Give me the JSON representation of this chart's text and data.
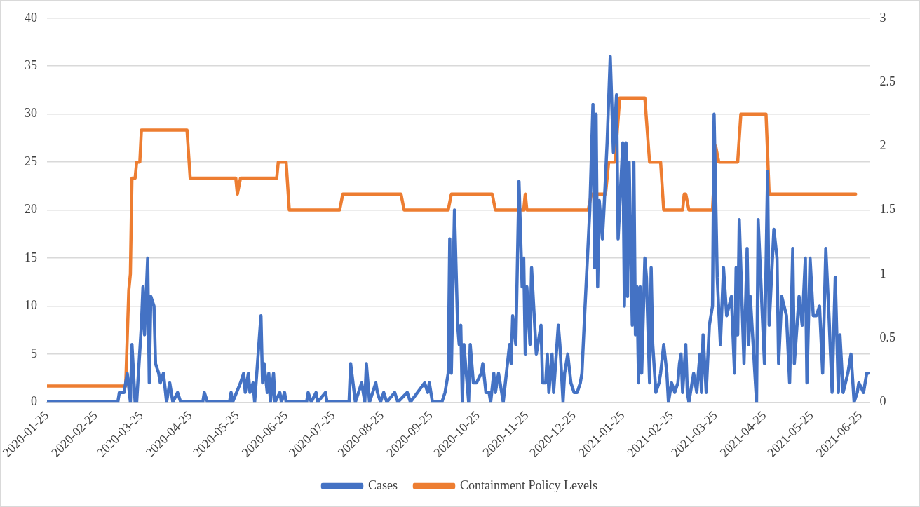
{
  "chart_data": {
    "type": "line",
    "grid": "y",
    "legend": "bottom",
    "marker": "none",
    "line_style": "solid",
    "xlim": [
      "2020-01-25",
      "2021-07-01"
    ],
    "xticks": [
      "2020-01-25",
      "2020-02-25",
      "2020-03-25",
      "2020-04-25",
      "2020-05-25",
      "2020-06-25",
      "2020-07-25",
      "2020-08-25",
      "2020-09-25",
      "2020-10-25",
      "2020-11-25",
      "2020-12-25",
      "2021-01-25",
      "2021-02-25",
      "2021-03-25",
      "2021-04-25",
      "2021-05-25",
      "2021-06-25"
    ],
    "ylim": [
      0,
      40
    ],
    "yticks": [
      0,
      5,
      10,
      15,
      20,
      25,
      30,
      35,
      40
    ],
    "y2lim": [
      0,
      3
    ],
    "y2ticks": [
      0,
      0.5,
      1,
      1.5,
      2,
      2.5,
      3
    ],
    "series": [
      {
        "name": "Cases",
        "color": "#4472c4",
        "axis": "y",
        "x": [
          "2020-01-25",
          "2020-03-10",
          "2020-03-11",
          "2020-03-14",
          "2020-03-16",
          "2020-03-18",
          "2020-03-19",
          "2020-03-21",
          "2020-03-22",
          "2020-03-25",
          "2020-03-26",
          "2020-03-27",
          "2020-03-29",
          "2020-03-30",
          "2020-03-31",
          "2020-04-02",
          "2020-04-03",
          "2020-04-05",
          "2020-04-06",
          "2020-04-08",
          "2020-04-10",
          "2020-04-12",
          "2020-04-14",
          "2020-04-17",
          "2020-04-19",
          "2020-05-03",
          "2020-05-04",
          "2020-05-06",
          "2020-05-20",
          "2020-05-21",
          "2020-05-22",
          "2020-05-27",
          "2020-05-29",
          "2020-05-30",
          "2020-06-01",
          "2020-06-02",
          "2020-06-04",
          "2020-06-05",
          "2020-06-09",
          "2020-06-10",
          "2020-06-11",
          "2020-06-13",
          "2020-06-14",
          "2020-06-15",
          "2020-06-17",
          "2020-06-18",
          "2020-06-21",
          "2020-06-22",
          "2020-06-24",
          "2020-06-25",
          "2020-07-08",
          "2020-07-09",
          "2020-07-11",
          "2020-07-14",
          "2020-07-15",
          "2020-07-20",
          "2020-07-21",
          "2020-08-04",
          "2020-08-05",
          "2020-08-08",
          "2020-08-10",
          "2020-08-12",
          "2020-08-14",
          "2020-08-15",
          "2020-08-17",
          "2020-08-21",
          "2020-08-22",
          "2020-08-24",
          "2020-08-26",
          "2020-08-28",
          "2020-09-02",
          "2020-09-04",
          "2020-09-10",
          "2020-09-12",
          "2020-09-21",
          "2020-09-23",
          "2020-09-24",
          "2020-09-26",
          "2020-10-02",
          "2020-10-04",
          "2020-10-06",
          "2020-10-07",
          "2020-10-08",
          "2020-10-10",
          "2020-10-12",
          "2020-10-13",
          "2020-10-14",
          "2020-10-15",
          "2020-10-16",
          "2020-10-19",
          "2020-10-20",
          "2020-10-22",
          "2020-10-24",
          "2020-10-27",
          "2020-10-28",
          "2020-10-30",
          "2020-11-01",
          "2020-11-02",
          "2020-11-04",
          "2020-11-05",
          "2020-11-07",
          "2020-11-09",
          "2020-11-10",
          "2020-11-12",
          "2020-11-14",
          "2020-11-15",
          "2020-11-16",
          "2020-11-18",
          "2020-11-20",
          "2020-11-22",
          "2020-11-23",
          "2020-11-24",
          "2020-11-25",
          "2020-11-27",
          "2020-11-28",
          "2020-11-30",
          "2020-12-01",
          "2020-12-04",
          "2020-12-05",
          "2020-12-07",
          "2020-12-08",
          "2020-12-09",
          "2020-12-11",
          "2020-12-12",
          "2020-12-15",
          "2020-12-16",
          "2020-12-18",
          "2020-12-19",
          "2020-12-21",
          "2020-12-23",
          "2020-12-25",
          "2020-12-27",
          "2020-12-29",
          "2020-12-30",
          "2021-01-01",
          "2021-01-04",
          "2021-01-06",
          "2021-01-07",
          "2021-01-08",
          "2021-01-09",
          "2021-01-10",
          "2021-01-12",
          "2021-01-13",
          "2021-01-15",
          "2021-01-17",
          "2021-01-19",
          "2021-01-21",
          "2021-01-22",
          "2021-01-25",
          "2021-01-26",
          "2021-01-27",
          "2021-01-28",
          "2021-01-29",
          "2021-01-31",
          "2021-02-01",
          "2021-02-02",
          "2021-02-03",
          "2021-02-04",
          "2021-02-05",
          "2021-02-06",
          "2021-02-08",
          "2021-02-09",
          "2021-02-11",
          "2021-02-12",
          "2021-02-13",
          "2021-02-15",
          "2021-02-17",
          "2021-02-18",
          "2021-02-20",
          "2021-02-22",
          "2021-02-23",
          "2021-02-25",
          "2021-02-27",
          "2021-03-01",
          "2021-03-02",
          "2021-03-03",
          "2021-03-04",
          "2021-03-06",
          "2021-03-07",
          "2021-03-08",
          "2021-03-10",
          "2021-03-11",
          "2021-03-13",
          "2021-03-15",
          "2021-03-16",
          "2021-03-17",
          "2021-03-19",
          "2021-03-21",
          "2021-03-23",
          "2021-03-24",
          "2021-03-26",
          "2021-03-28",
          "2021-03-30",
          "2021-04-01",
          "2021-04-04",
          "2021-04-06",
          "2021-04-07",
          "2021-04-08",
          "2021-04-09",
          "2021-04-12",
          "2021-04-14",
          "2021-04-15",
          "2021-04-16",
          "2021-04-20",
          "2021-04-21",
          "2021-04-25",
          "2021-04-27",
          "2021-04-28",
          "2021-05-01",
          "2021-05-03",
          "2021-05-04",
          "2021-05-06",
          "2021-05-09",
          "2021-05-11",
          "2021-05-13",
          "2021-05-14",
          "2021-05-17",
          "2021-05-19",
          "2021-05-21",
          "2021-05-22",
          "2021-05-24",
          "2021-05-26",
          "2021-05-28",
          "2021-05-30",
          "2021-06-01",
          "2021-06-03",
          "2021-06-05",
          "2021-06-07",
          "2021-06-09",
          "2021-06-11",
          "2021-06-12",
          "2021-06-14",
          "2021-06-17",
          "2021-06-19",
          "2021-06-21",
          "2021-06-23",
          "2021-06-24",
          "2021-06-27",
          "2021-06-29",
          "2021-06-30"
        ],
        "values": [
          0,
          0,
          1,
          1,
          3,
          0,
          6,
          0,
          0,
          8,
          12,
          7,
          15,
          2,
          11,
          10,
          4,
          3,
          2,
          3,
          0,
          2,
          0,
          1,
          0,
          0,
          1,
          0,
          0,
          1,
          0,
          2,
          3,
          1,
          3,
          1,
          2,
          0,
          9,
          2,
          4,
          1,
          3,
          0,
          3,
          0,
          1,
          0,
          1,
          0,
          0,
          1,
          0,
          1,
          0,
          1,
          0,
          0,
          4,
          0,
          1,
          2,
          0,
          4,
          0,
          2,
          1,
          0,
          1,
          0,
          1,
          0,
          1,
          0,
          2,
          1,
          2,
          0,
          0,
          1,
          3,
          17,
          3,
          20,
          8,
          6,
          8,
          0,
          6,
          0,
          6,
          2,
          2,
          3,
          4,
          1,
          1,
          0,
          3,
          1,
          3,
          1,
          0,
          3,
          6,
          4,
          9,
          6,
          23,
          12,
          15,
          5,
          12,
          6,
          14,
          8,
          5,
          8,
          2,
          2,
          5,
          1,
          5,
          1,
          8,
          6,
          0,
          3,
          5,
          2,
          1,
          1,
          2,
          3,
          10,
          20,
          31,
          14,
          30,
          12,
          21,
          17,
          20,
          27,
          36,
          26,
          32,
          17,
          27,
          10,
          27,
          11,
          25,
          8,
          25,
          7,
          12,
          2,
          12,
          3,
          15,
          13,
          2,
          14,
          6,
          1,
          2,
          3,
          6,
          3,
          0,
          2,
          1,
          2,
          4,
          5,
          1,
          6,
          1,
          0,
          2,
          3,
          1,
          5,
          1,
          7,
          1,
          8,
          10,
          30,
          13,
          6,
          14,
          9,
          11,
          3,
          14,
          7,
          19,
          4,
          16,
          6,
          11,
          0,
          19,
          4,
          24,
          8,
          18,
          15,
          4,
          11,
          9,
          2,
          16,
          4,
          11,
          8,
          15,
          2,
          15,
          9,
          9,
          10,
          3,
          16,
          9,
          1,
          13,
          1,
          7,
          1,
          3,
          5,
          0,
          1,
          2,
          1,
          3,
          3
        ]
      },
      {
        "name": "Containment Policy Levels",
        "color": "#ed7d31",
        "axis": "y2",
        "x": [
          "2020-01-25",
          "2020-03-15",
          "2020-03-17",
          "2020-03-18",
          "2020-03-19",
          "2020-03-21",
          "2020-03-22",
          "2020-03-24",
          "2020-03-25",
          "2020-04-23",
          "2020-04-25",
          "2020-05-24",
          "2020-05-25",
          "2020-05-27",
          "2020-06-19",
          "2020-06-20",
          "2020-06-25",
          "2020-06-27",
          "2020-07-29",
          "2020-07-31",
          "2020-09-06",
          "2020-09-08",
          "2020-10-06",
          "2020-10-08",
          "2020-11-03",
          "2020-11-05",
          "2020-11-23",
          "2020-11-24",
          "2020-11-25",
          "2021-01-03",
          "2021-01-05",
          "2021-01-14",
          "2021-01-16",
          "2021-01-20",
          "2021-01-23",
          "2021-02-08",
          "2021-02-11",
          "2021-02-18",
          "2021-02-20",
          "2021-03-04",
          "2021-03-05",
          "2021-03-06",
          "2021-03-08",
          "2021-03-23",
          "2021-03-25",
          "2021-03-27",
          "2021-04-08",
          "2021-04-10",
          "2021-04-26",
          "2021-04-28",
          "2021-06-22"
        ],
        "values": [
          0.125,
          0.125,
          0.875,
          1,
          1.75,
          1.75,
          1.875,
          1.875,
          2.125,
          2.125,
          1.75,
          1.75,
          1.625,
          1.75,
          1.75,
          1.875,
          1.875,
          1.5,
          1.5,
          1.625,
          1.625,
          1.5,
          1.5,
          1.625,
          1.625,
          1.5,
          1.5,
          1.625,
          1.5,
          1.5,
          1.625,
          1.625,
          1.875,
          1.875,
          2.375,
          2.375,
          1.875,
          1.875,
          1.5,
          1.5,
          1.625,
          1.625,
          1.5,
          1.5,
          2,
          1.875,
          1.875,
          2.25,
          2.25,
          1.625,
          1.625
        ]
      }
    ]
  }
}
